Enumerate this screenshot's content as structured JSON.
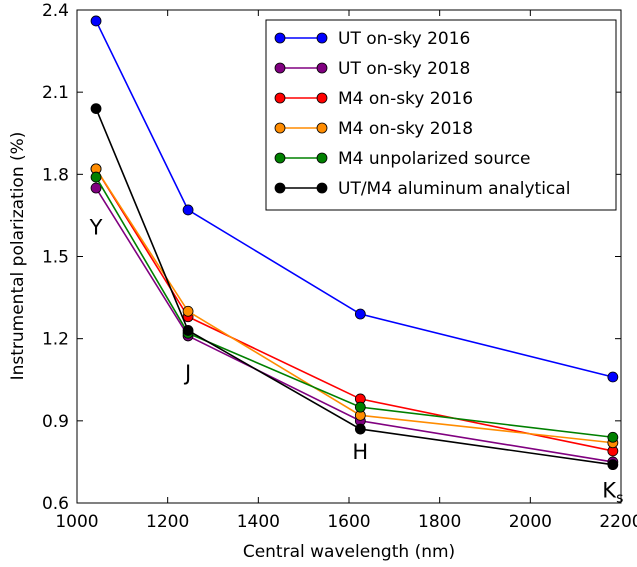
{
  "chart_data": {
    "type": "line",
    "xlabel": "Central wavelength (nm)",
    "ylabel": "Instrumental polarization (%)",
    "xlim": [
      1000,
      2200
    ],
    "ylim": [
      0.6,
      2.4
    ],
    "xticks": [
      1000,
      1200,
      1400,
      1600,
      1800,
      2000,
      2200
    ],
    "yticks": [
      0.6,
      0.9,
      1.2,
      1.5,
      1.8,
      2.1,
      2.4
    ],
    "ytick_labels": [
      "0.6",
      "0.9",
      "1.2",
      "1.5",
      "1.8",
      "2.1",
      "2.4"
    ],
    "x": [
      1042,
      1245,
      1625,
      2182
    ],
    "series": [
      {
        "name": "UT on-sky 2016",
        "color": "#0000ff",
        "values": [
          2.36,
          1.67,
          1.29,
          1.06
        ]
      },
      {
        "name": "UT on-sky 2018",
        "color": "#800080",
        "values": [
          1.75,
          1.21,
          0.9,
          0.75
        ]
      },
      {
        "name": "M4 on-sky 2016",
        "color": "#ff0000",
        "values": [
          1.82,
          1.28,
          0.98,
          0.79
        ]
      },
      {
        "name": "M4 on-sky 2018",
        "color": "#ff8c00",
        "values": [
          1.82,
          1.3,
          0.92,
          0.82
        ]
      },
      {
        "name": "M4 unpolarized source",
        "color": "#008000",
        "values": [
          1.79,
          1.22,
          0.95,
          0.84
        ]
      },
      {
        "name": "UT/M4 aluminum analytical",
        "color": "#000000",
        "values": [
          2.04,
          1.23,
          0.87,
          0.74
        ]
      }
    ],
    "annotations": [
      {
        "text": "Y",
        "x": 1042,
        "y": 1.58
      },
      {
        "text": "J",
        "x": 1245,
        "y": 1.05
      },
      {
        "text": "H",
        "x": 1625,
        "y": 0.76
      },
      {
        "text": "K",
        "subscript": "s",
        "x": 2182,
        "y": 0.62
      }
    ],
    "legend_position": "top-right",
    "grid": false
  }
}
